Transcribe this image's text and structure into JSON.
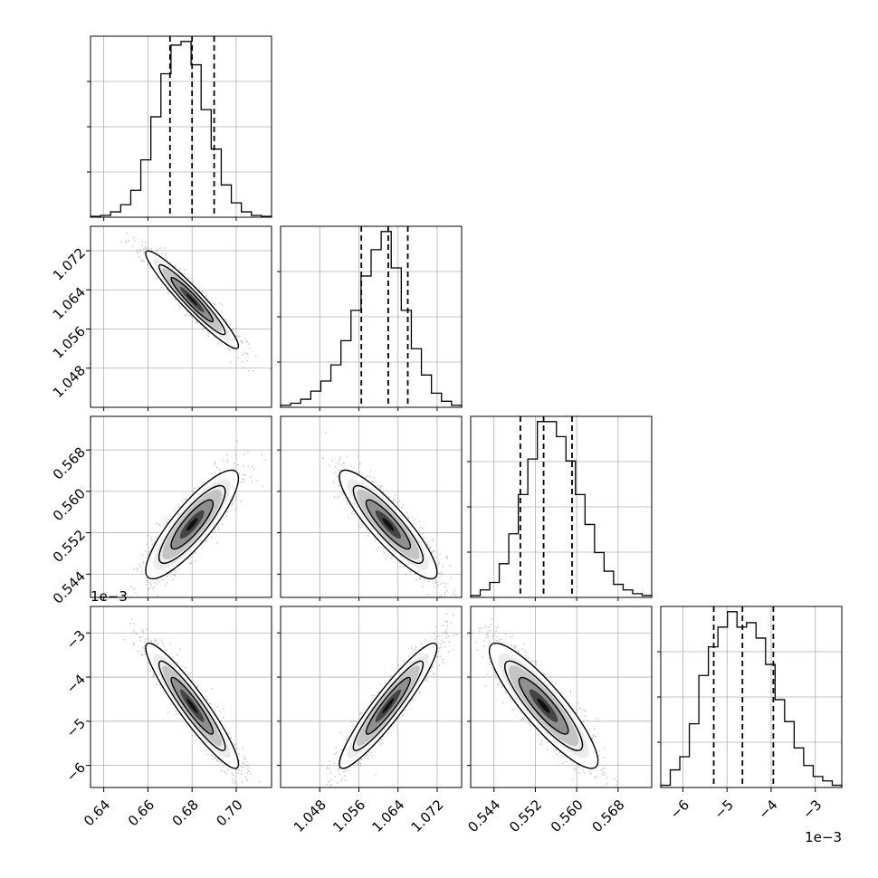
{
  "chart_data": {
    "type": "corner",
    "title": "",
    "grid": true,
    "offset_labels": [
      "1e−3",
      "1e−3"
    ],
    "params": [
      {
        "range": [
          0.634,
          0.716
        ],
        "ticks": [
          0.64,
          0.66,
          0.68,
          0.7
        ],
        "tick_labels": [
          "0.64",
          "0.66",
          "0.68",
          "0.70"
        ],
        "quantiles": [
          0.67,
          0.68,
          0.69
        ],
        "hist": [
          0.5,
          1,
          3,
          7,
          15,
          32,
          56,
          80,
          96,
          98,
          85,
          60,
          38,
          18,
          8,
          3,
          1,
          0.5
        ]
      },
      {
        "range": [
          1.04,
          1.077
        ],
        "ticks": [
          1.048,
          1.056,
          1.064,
          1.072
        ],
        "tick_labels": [
          "1.048",
          "1.056",
          "1.064",
          "1.072"
        ],
        "quantiles": [
          1.0565,
          1.062,
          1.066
        ],
        "hist": [
          1,
          2,
          4,
          8,
          13,
          21,
          33,
          48,
          65,
          78,
          87,
          69,
          48,
          29,
          16,
          7,
          3,
          1
        ]
      },
      {
        "range": [
          0.5395,
          0.5745
        ],
        "ticks": [
          0.544,
          0.552,
          0.56,
          0.568
        ],
        "tick_labels": [
          "0.544",
          "0.552",
          "0.560",
          "0.568"
        ],
        "quantiles": [
          0.5491,
          0.5536,
          0.5591
        ],
        "hist": [
          1,
          4,
          8,
          18,
          34,
          55,
          74,
          94,
          94,
          86,
          73,
          55,
          39,
          24,
          14,
          7,
          4,
          2,
          1
        ]
      },
      {
        "range": [
          -6.5,
          -2.4
        ],
        "ticks": [
          -6,
          -5,
          -4,
          -3
        ],
        "tick_labels": [
          "−6",
          "−5",
          "−4",
          "−3"
        ],
        "quantiles": [
          -5.3,
          -4.65,
          -3.95
        ],
        "hist": [
          1,
          8,
          14,
          29,
          51,
          64,
          73,
          80,
          73,
          75,
          68,
          56,
          40,
          30,
          18,
          10,
          5,
          3,
          1
        ]
      }
    ],
    "correlations": [
      {
        "row": 1,
        "col": 0,
        "rho": -0.95
      },
      {
        "row": 2,
        "col": 0,
        "rho": 0.85
      },
      {
        "row": 2,
        "col": 1,
        "rho": -0.88
      },
      {
        "row": 3,
        "col": 0,
        "rho": -0.93
      },
      {
        "row": 3,
        "col": 1,
        "rho": 0.93
      },
      {
        "row": 3,
        "col": 2,
        "rho": -0.88
      }
    ]
  }
}
